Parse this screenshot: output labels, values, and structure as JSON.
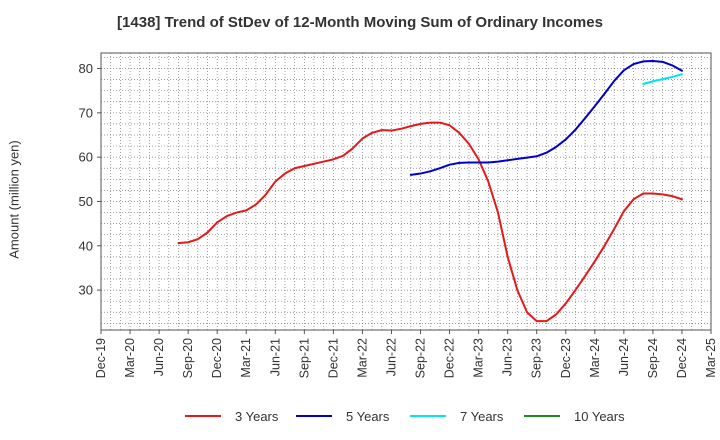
{
  "colors": {
    "y3": "#e31a1c",
    "y5": "#0000cc",
    "y7": "#00e5ee",
    "y10": "#1a8c1a"
  },
  "chart_data": {
    "type": "line",
    "title": "[1438]  Trend of StDev of 12-Month Moving Sum of Ordinary Incomes",
    "xlabel": "",
    "ylabel": "Amount (million yen)",
    "ylim": [
      21,
      83.5
    ],
    "yticks": [
      30,
      40,
      50,
      60,
      70,
      80
    ],
    "xlim": [
      "2019-12",
      "2025-03"
    ],
    "xticks": [
      "Dec-19",
      "Mar-20",
      "Jun-20",
      "Sep-20",
      "Dec-20",
      "Mar-21",
      "Jun-21",
      "Sep-21",
      "Dec-21",
      "Mar-22",
      "Jun-22",
      "Sep-22",
      "Dec-22",
      "Mar-23",
      "Jun-23",
      "Sep-23",
      "Dec-23",
      "Mar-24",
      "Jun-24",
      "Sep-24",
      "Dec-24",
      "Mar-25"
    ],
    "grid": true,
    "legend_position": "bottom",
    "series": [
      {
        "name": "3 Years",
        "color": "#e31a1c",
        "x": [
          "2020-08",
          "2020-09",
          "2020-10",
          "2020-11",
          "2020-12",
          "2021-01",
          "2021-02",
          "2021-03",
          "2021-04",
          "2021-05",
          "2021-06",
          "2021-07",
          "2021-08",
          "2021-09",
          "2021-10",
          "2021-11",
          "2021-12",
          "2022-01",
          "2022-02",
          "2022-03",
          "2022-04",
          "2022-05",
          "2022-06",
          "2022-07",
          "2022-08",
          "2022-09",
          "2022-10",
          "2022-11",
          "2022-12",
          "2023-01",
          "2023-02",
          "2023-03",
          "2023-04",
          "2023-05",
          "2023-06",
          "2023-07",
          "2023-08",
          "2023-09",
          "2023-10",
          "2023-11",
          "2023-12",
          "2024-01",
          "2024-02",
          "2024-03",
          "2024-04",
          "2024-05",
          "2024-06",
          "2024-07",
          "2024-08",
          "2024-09",
          "2024-10",
          "2024-11",
          "2024-12"
        ],
        "y": [
          40.6,
          40.8,
          41.5,
          43,
          45.3,
          46.7,
          47.5,
          48,
          49.3,
          51.5,
          54.5,
          56.3,
          57.5,
          58,
          58.5,
          59,
          59.5,
          60.3,
          62,
          64.2,
          65.5,
          66.1,
          66,
          66.4,
          67,
          67.5,
          67.8,
          67.8,
          67.2,
          65.5,
          63,
          59.5,
          54.5,
          47.5,
          37.5,
          30,
          25,
          23,
          23,
          24.5,
          27,
          30,
          33.2,
          36.5,
          40,
          43.8,
          47.8,
          50.5,
          51.8,
          51.8,
          51.6,
          51.2,
          50.5
        ]
      },
      {
        "name": "5 Years",
        "color": "#0000cc",
        "x": [
          "2022-08",
          "2022-09",
          "2022-10",
          "2022-11",
          "2022-12",
          "2023-01",
          "2023-02",
          "2023-03",
          "2023-04",
          "2023-05",
          "2023-06",
          "2023-07",
          "2023-08",
          "2023-09",
          "2023-10",
          "2023-11",
          "2023-12",
          "2024-01",
          "2024-02",
          "2024-03",
          "2024-04",
          "2024-05",
          "2024-06",
          "2024-07",
          "2024-08",
          "2024-09",
          "2024-10",
          "2024-11",
          "2024-12"
        ],
        "y": [
          56,
          56.3,
          56.8,
          57.5,
          58.3,
          58.7,
          58.8,
          58.8,
          58.8,
          59,
          59.3,
          59.6,
          59.9,
          60.2,
          61,
          62.3,
          64,
          66.2,
          68.8,
          71.5,
          74.3,
          77.2,
          79.6,
          81,
          81.6,
          81.7,
          81.5,
          80.7,
          79.5
        ]
      },
      {
        "name": "7 Years",
        "color": "#00e5ee",
        "x": [
          "2024-08",
          "2024-09",
          "2024-10",
          "2024-11",
          "2024-12"
        ],
        "y": [
          76.5,
          77.1,
          77.6,
          78.1,
          78.7
        ]
      },
      {
        "name": "10 Years",
        "color": "#1a8c1a",
        "x": [],
        "y": []
      }
    ]
  }
}
